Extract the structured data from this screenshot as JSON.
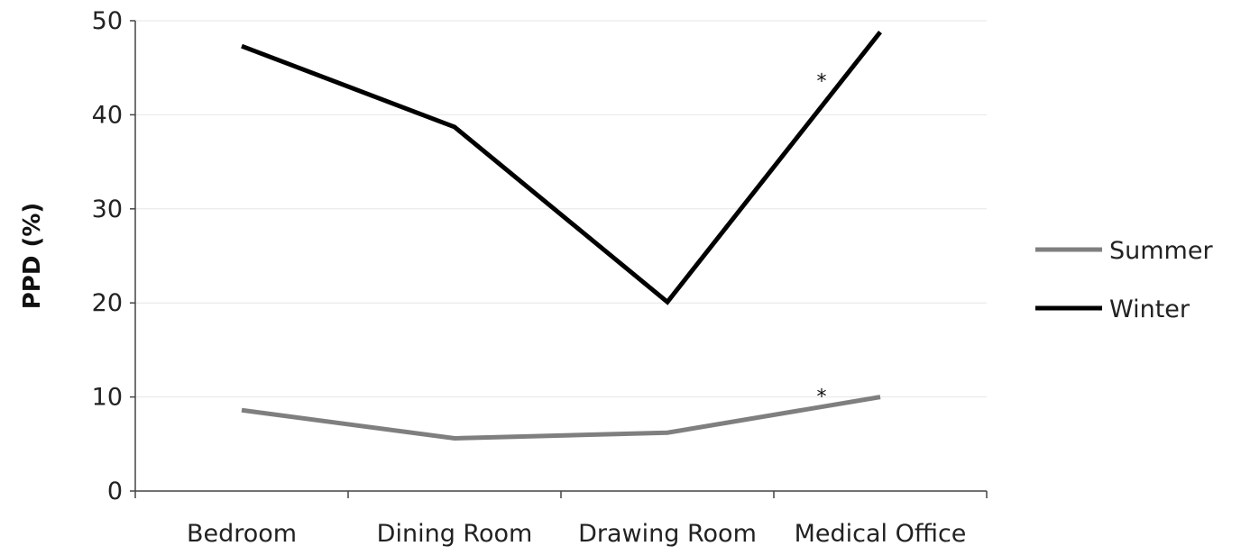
{
  "chart_data": {
    "type": "line",
    "categories": [
      "Bedroom",
      "Dining Room",
      "Drawing Room",
      "Medical Office"
    ],
    "series": [
      {
        "name": "Summer",
        "values": [
          8.6,
          5.6,
          6.2,
          10.0
        ],
        "color": "#7f7f7f"
      },
      {
        "name": "Winter",
        "values": [
          47.3,
          38.7,
          20.1,
          48.8
        ],
        "color": "#000000"
      }
    ],
    "ylabel": "PPD (%)",
    "xlabel": "",
    "ylim": [
      0,
      50
    ],
    "yticks": [
      "0",
      "10",
      "20",
      "30",
      "40",
      "50"
    ],
    "grid": true,
    "legend": "right",
    "annotations": [
      {
        "text": "*",
        "x": "Medical Office",
        "y": 44
      },
      {
        "text": "*",
        "x": "Medical Office",
        "y": 10.5
      }
    ]
  }
}
